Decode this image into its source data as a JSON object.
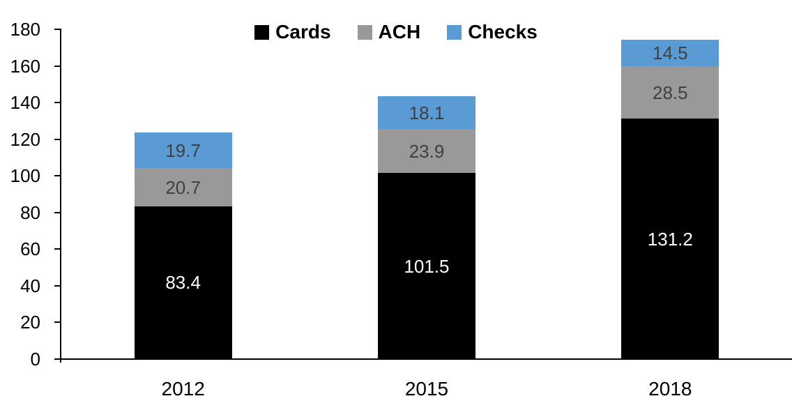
{
  "chart_data": {
    "type": "bar",
    "stacked": true,
    "title": "",
    "xlabel": "",
    "ylabel": "",
    "categories": [
      "2012",
      "2015",
      "2018"
    ],
    "series": [
      {
        "name": "Cards",
        "color": "#000000",
        "label_color": "#ffffff",
        "values": [
          83.4,
          101.5,
          131.2
        ]
      },
      {
        "name": "ACH",
        "color": "#999999",
        "label_color": "#404040",
        "values": [
          20.7,
          23.9,
          28.5
        ]
      },
      {
        "name": "Checks",
        "color": "#5b9bd5",
        "label_color": "#404040",
        "values": [
          19.7,
          18.1,
          14.5
        ]
      }
    ],
    "ylim": [
      0,
      180
    ],
    "ytick_step": 20,
    "yticks": [
      "0",
      "20",
      "40",
      "60",
      "80",
      "100",
      "120",
      "140",
      "160",
      "180"
    ],
    "legend_position": "top-center",
    "grid": false,
    "axis_color": "#000000"
  }
}
